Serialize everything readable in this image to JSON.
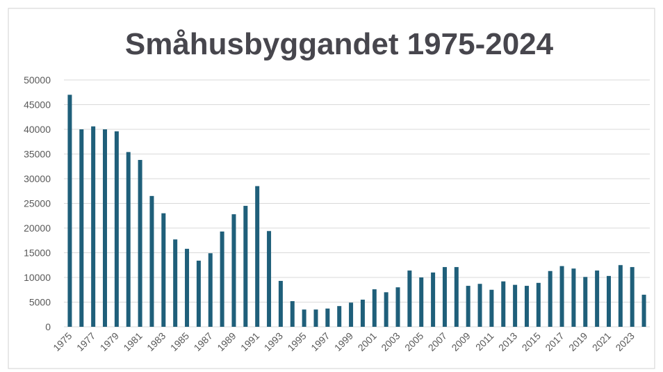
{
  "chart_data": {
    "type": "bar",
    "title": "Småhusbyggandet 1975-2024",
    "categories": [
      "1975",
      null,
      "1977",
      null,
      "1979",
      null,
      "1981",
      null,
      "1983",
      null,
      "1985",
      null,
      "1987",
      null,
      "1989",
      null,
      "1991",
      null,
      "1993",
      null,
      "1995",
      null,
      "1997",
      null,
      "1999",
      null,
      "2001",
      null,
      "2003",
      null,
      "2005",
      null,
      "2007",
      null,
      "2009",
      null,
      "2011",
      null,
      "2013",
      null,
      "2015",
      null,
      "2017",
      null,
      "2019",
      null,
      "2021",
      null,
      "2023",
      null
    ],
    "values": [
      47000,
      40000,
      40600,
      40000,
      39600,
      35400,
      33800,
      26500,
      23000,
      17700,
      15800,
      13400,
      14900,
      19300,
      22800,
      24500,
      28500,
      19400,
      9300,
      5200,
      3500,
      3500,
      3700,
      4200,
      4900,
      5500,
      7600,
      7000,
      8000,
      11400,
      10000,
      11000,
      12100,
      12100,
      8300,
      8700,
      7500,
      9200,
      8500,
      8300,
      8900,
      11300,
      12300,
      11800,
      10100,
      11400,
      10300,
      12500,
      12100,
      6500
    ],
    "color": "#1f5f7a",
    "ylim": [
      0,
      50000
    ],
    "yticks": [
      0,
      5000,
      10000,
      15000,
      20000,
      25000,
      30000,
      35000,
      40000,
      45000,
      50000
    ],
    "grid": true
  }
}
